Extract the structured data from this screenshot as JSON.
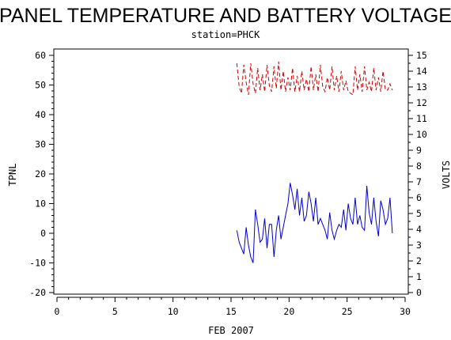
{
  "chart_data": {
    "type": "line",
    "title": "PANEL TEMPERATURE AND BATTERY VOLTAGE",
    "subtitle": "station=PHCK",
    "xlabel": "FEB 2007",
    "ylabel_left": "TPNL",
    "ylabel_right": "VOLTS",
    "xlim": [
      0,
      30
    ],
    "ylim_left": [
      -20,
      60
    ],
    "ylim_right": [
      0,
      15
    ],
    "x_ticks": [
      0,
      5,
      10,
      15,
      20,
      25,
      30
    ],
    "y_left_ticks": [
      -20,
      -10,
      0,
      10,
      20,
      30,
      40,
      50,
      60
    ],
    "y_right_ticks": [
      0,
      1,
      2,
      3,
      4,
      5,
      6,
      7,
      8,
      9,
      10,
      11,
      12,
      13,
      14,
      15
    ],
    "colors": {
      "tpnl": "#0000cc",
      "volts": "#cc0000"
    },
    "series": [
      {
        "axis": "left",
        "line_style": "solid",
        "x": [
          15.5,
          15.7,
          15.9,
          16.1,
          16.3,
          16.5,
          16.7,
          16.9,
          17.1,
          17.3,
          17.5,
          17.7,
          17.9,
          18.1,
          18.3,
          18.5,
          18.7,
          18.9,
          19.1,
          19.3,
          19.5,
          19.7,
          19.9,
          20.1,
          20.3,
          20.5,
          20.7,
          20.9,
          21.1,
          21.3,
          21.5,
          21.7,
          21.9,
          22.1,
          22.3,
          22.5,
          22.7,
          22.9,
          23.1,
          23.3,
          23.5,
          23.7,
          23.9,
          24.1,
          24.3,
          24.5,
          24.7,
          24.9,
          25.1,
          25.3,
          25.5,
          25.7,
          25.9,
          26.1,
          26.3,
          26.5,
          26.7,
          26.9,
          27.1,
          27.3,
          27.5,
          27.7,
          27.9,
          28.1,
          28.3,
          28.5,
          28.7,
          28.9
        ],
        "values": [
          1,
          -3,
          -5,
          -7,
          2,
          -4,
          -8,
          -10,
          8,
          3,
          -3,
          -2,
          5,
          -5,
          3,
          3,
          -8,
          1,
          6,
          -2,
          2,
          6,
          10,
          17,
          13,
          8,
          15,
          6,
          12,
          4,
          6,
          14,
          10,
          4,
          12,
          3,
          5,
          3,
          1,
          -2,
          7,
          1,
          -2,
          1,
          3,
          2,
          8,
          1,
          10,
          5,
          3,
          12,
          3,
          6,
          2,
          1,
          16,
          7,
          3,
          12,
          4,
          -1,
          11,
          8,
          3,
          5,
          12,
          0
        ]
      },
      {
        "axis": "right",
        "line_style": "dashed",
        "x": [
          15.5,
          15.7,
          15.9,
          16.1,
          16.3,
          16.5,
          16.7,
          16.9,
          17.1,
          17.3,
          17.5,
          17.7,
          17.9,
          18.1,
          18.3,
          18.5,
          18.7,
          18.9,
          19.1,
          19.3,
          19.5,
          19.7,
          19.9,
          20.1,
          20.3,
          20.5,
          20.7,
          20.9,
          21.1,
          21.3,
          21.5,
          21.7,
          21.9,
          22.1,
          22.3,
          22.5,
          22.7,
          22.9,
          23.1,
          23.3,
          23.5,
          23.7,
          23.9,
          24.1,
          24.3,
          24.5,
          24.7,
          24.9,
          25.1,
          25.3,
          25.5,
          25.7,
          25.9,
          26.1,
          26.3,
          26.5,
          26.7,
          26.9,
          27.1,
          27.3,
          27.5,
          27.7,
          27.9,
          28.1,
          28.3,
          28.5,
          28.7,
          28.9
        ],
        "values": [
          14.5,
          13,
          12.6,
          14.4,
          13.3,
          12.5,
          14.5,
          13.2,
          12.6,
          14.2,
          12.8,
          13.8,
          12.7,
          14.4,
          13.1,
          12.7,
          14.3,
          12.9,
          14.6,
          12.8,
          14.0,
          12.7,
          13.6,
          12.8,
          14.2,
          12.7,
          13.7,
          12.7,
          14.0,
          12.8,
          13.5,
          12.7,
          14.3,
          12.8,
          13.8,
          12.7,
          14.4,
          13.0,
          12.7,
          13.6,
          12.8,
          14.3,
          12.8,
          13.7,
          12.7,
          14.0,
          12.8,
          13.4,
          12.7,
          12.6,
          12.5,
          14.3,
          12.8,
          13.8,
          12.7,
          14.3,
          12.8,
          13.3,
          12.7,
          14.2,
          12.8,
          13.6,
          12.7,
          14.0,
          12.8,
          12.8,
          13.2,
          12.8
        ]
      }
    ]
  }
}
